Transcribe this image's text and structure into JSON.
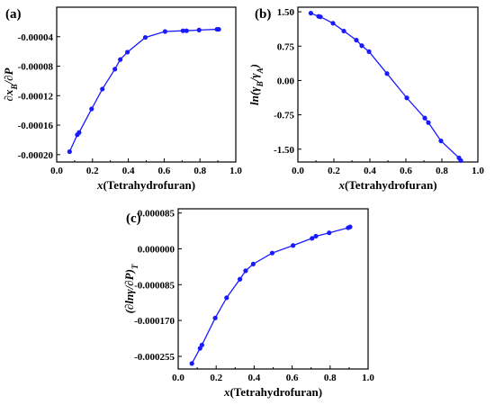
{
  "chart_data": [
    {
      "type": "line",
      "panel_label": "(a)",
      "xlabel": "x(Tetrahydrofuran)",
      "ylabel": "∂x_B/∂P",
      "xlim": [
        0.0,
        1.0
      ],
      "ylim": [
        -0.00021,
        0.0
      ],
      "xticks": [
        0.0,
        0.2,
        0.4,
        0.6,
        0.8,
        1.0
      ],
      "xtick_labels": [
        "0.0",
        "0.2",
        "0.4",
        "0.6",
        "0.8",
        "1.0"
      ],
      "yticks": [
        -4e-05,
        -8e-05,
        -0.00012,
        -0.00016,
        -0.0002
      ],
      "ytick_labels": [
        "-0.00004",
        "-0.00008",
        "-0.00012",
        "-0.00016",
        "-0.00020"
      ],
      "grid": false,
      "color": "#1a1aff",
      "series": [
        {
          "x": [
            0.072,
            0.115,
            0.125,
            0.195,
            0.255,
            0.325,
            0.355,
            0.395,
            0.495,
            0.605,
            0.705,
            0.725,
            0.795,
            0.895,
            0.905
          ],
          "y": [
            -0.000196,
            -0.000173,
            -0.00017,
            -0.000138,
            -0.000111,
            -8.4e-05,
            -7.1e-05,
            -6.1e-05,
            -4.1e-05,
            -3.3e-05,
            -3.2e-05,
            -3.2e-05,
            -3.1e-05,
            -3e-05,
            -3e-05
          ]
        }
      ]
    },
    {
      "type": "line",
      "panel_label": "(b)",
      "xlabel": "x(Tetrahydrofuran)",
      "ylabel": "ln(γ_B/γ_A)",
      "xlim": [
        0.0,
        1.0
      ],
      "ylim": [
        -1.78,
        1.6
      ],
      "xticks": [
        0.0,
        0.2,
        0.4,
        0.6,
        0.8,
        1.0
      ],
      "xtick_labels": [
        "0.0",
        "0.2",
        "0.4",
        "0.6",
        "0.8",
        "1.0"
      ],
      "yticks": [
        1.5,
        0.75,
        0.0,
        -0.75,
        -1.5
      ],
      "ytick_labels": [
        "1.50",
        "0.75",
        "0.00",
        "-0.75",
        "-1.50"
      ],
      "grid": false,
      "color": "#1a1aff",
      "series": [
        {
          "x": [
            0.072,
            0.115,
            0.125,
            0.195,
            0.255,
            0.325,
            0.355,
            0.395,
            0.495,
            0.605,
            0.705,
            0.725,
            0.795,
            0.895,
            0.905
          ],
          "y": [
            1.47,
            1.4,
            1.39,
            1.25,
            1.08,
            0.88,
            0.76,
            0.63,
            0.15,
            -0.38,
            -0.82,
            -0.92,
            -1.32,
            -1.69,
            -1.75
          ]
        }
      ]
    },
    {
      "type": "line",
      "panel_label": "(c)",
      "xlabel": "x(Tetrahydrofuran)",
      "ylabel": "(∂lnγ/∂P)_T",
      "xlim": [
        0.0,
        1.0
      ],
      "ylim": [
        -0.000285,
        9.5e-05
      ],
      "xticks": [
        0.0,
        0.2,
        0.4,
        0.6,
        0.8,
        1.0
      ],
      "xtick_labels": [
        "0.0",
        "0.2",
        "0.4",
        "0.6",
        "0.8",
        "1.0"
      ],
      "yticks": [
        8.5e-05,
        0.0,
        -8.5e-05,
        -0.00017,
        -0.000255
      ],
      "ytick_labels": [
        "0.000085",
        "0.000000",
        "-0.000085",
        "-0.000170",
        "-0.000255"
      ],
      "grid": false,
      "color": "#1a1aff",
      "series": [
        {
          "x": [
            0.072,
            0.115,
            0.125,
            0.195,
            0.255,
            0.325,
            0.355,
            0.395,
            0.495,
            0.605,
            0.705,
            0.725,
            0.795,
            0.895,
            0.905
          ],
          "y": [
            -0.000272,
            -0.000236,
            -0.000228,
            -0.000164,
            -0.000116,
            -7.2e-05,
            -5.2e-05,
            -3.6e-05,
            -1e-05,
            8e-06,
            2.5e-05,
            3e-05,
            3.8e-05,
            5e-05,
            5.2e-05
          ]
        }
      ]
    }
  ]
}
